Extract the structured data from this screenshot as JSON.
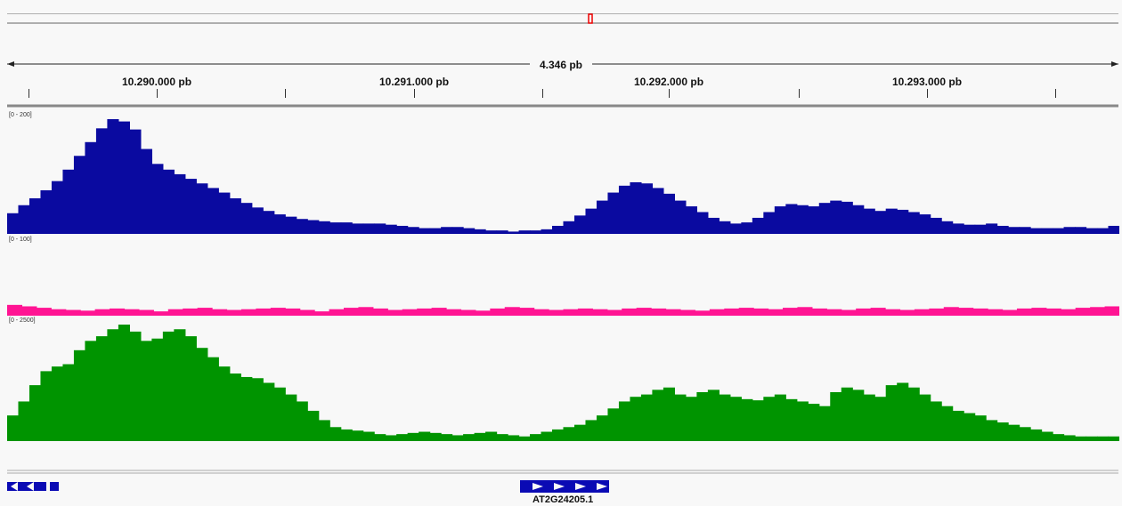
{
  "ruler": {
    "span_label": "4.346 pb",
    "ticks": [
      "10.290.000 pb",
      "10.291.000 pb",
      "10.292.000 pb",
      "10.293.000 pb"
    ]
  },
  "tracks": [
    {
      "name": "track-1",
      "range": "[0 - 200]",
      "color": "#0a0aa0",
      "values": [
        18,
        25,
        31,
        38,
        46,
        56,
        68,
        80,
        92,
        100,
        98,
        91,
        74,
        61,
        56,
        52,
        48,
        44,
        40,
        36,
        31,
        27,
        23,
        20,
        17,
        15,
        13,
        12,
        11,
        10,
        10,
        9,
        9,
        9,
        8,
        7,
        6,
        5,
        5,
        6,
        6,
        5,
        4,
        3,
        3,
        2,
        3,
        3,
        4,
        7,
        11,
        16,
        22,
        29,
        36,
        42,
        45,
        44,
        40,
        35,
        29,
        24,
        19,
        14,
        11,
        9,
        10,
        14,
        19,
        24,
        26,
        25,
        24,
        27,
        29,
        28,
        25,
        22,
        20,
        22,
        21,
        19,
        17,
        14,
        11,
        9,
        8,
        8,
        9,
        7,
        6,
        6,
        5,
        5,
        5,
        6,
        6,
        5,
        5,
        7
      ]
    },
    {
      "name": "track-2",
      "range": "[0 - 100]",
      "color": "#ff1493",
      "values": [
        15,
        13,
        11,
        9,
        8,
        7,
        9,
        10,
        9,
        8,
        6,
        9,
        10,
        11,
        9,
        8,
        9,
        10,
        11,
        10,
        8,
        6,
        9,
        11,
        12,
        10,
        8,
        9,
        10,
        11,
        9,
        8,
        7,
        10,
        12,
        11,
        9,
        8,
        9,
        10,
        9,
        8,
        10,
        11,
        10,
        9,
        8,
        7,
        9,
        10,
        11,
        10,
        9,
        11,
        12,
        10,
        9,
        8,
        10,
        11,
        9,
        8,
        9,
        10,
        12,
        11,
        10,
        9,
        8,
        10,
        11,
        10,
        9,
        11,
        12,
        13
      ]
    },
    {
      "name": "track-3",
      "range": "[0 - 2500]",
      "color": "#009400",
      "values": [
        22,
        34,
        48,
        60,
        64,
        66,
        78,
        86,
        90,
        96,
        100,
        94,
        86,
        88,
        94,
        96,
        90,
        80,
        72,
        64,
        58,
        55,
        54,
        50,
        46,
        40,
        34,
        26,
        18,
        12,
        10,
        9,
        8,
        6,
        5,
        6,
        7,
        8,
        7,
        6,
        5,
        6,
        7,
        8,
        6,
        5,
        4,
        6,
        8,
        10,
        12,
        14,
        18,
        22,
        28,
        34,
        38,
        40,
        44,
        46,
        40,
        38,
        42,
        44,
        40,
        38,
        36,
        35,
        38,
        40,
        36,
        34,
        32,
        30,
        42,
        46,
        44,
        40,
        38,
        48,
        50,
        46,
        40,
        34,
        30,
        26,
        24,
        22,
        18,
        16,
        14,
        12,
        10,
        8,
        6,
        5,
        4,
        4,
        4,
        4
      ]
    }
  ],
  "gene": {
    "label": "AT2G24205.1"
  }
}
